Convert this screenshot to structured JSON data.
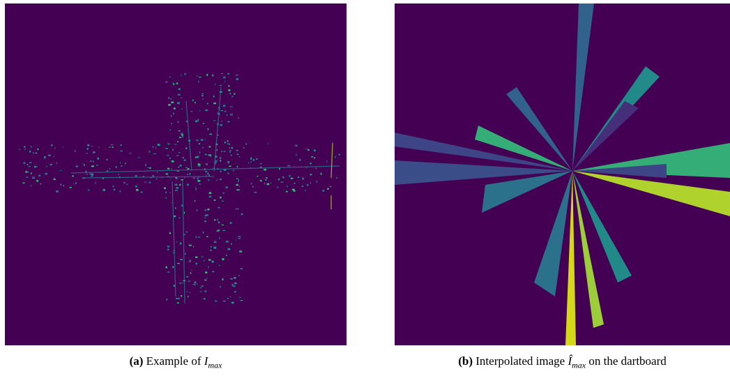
{
  "figures": [
    {
      "label": "(a)",
      "caption": "Example of",
      "math": {
        "base": "I",
        "sub": "max"
      }
    },
    {
      "label": "(b)",
      "caption": "Interpolated image",
      "math": {
        "base": "Î",
        "sub": "max"
      },
      "caption_end": "on the dartboard"
    }
  ]
}
